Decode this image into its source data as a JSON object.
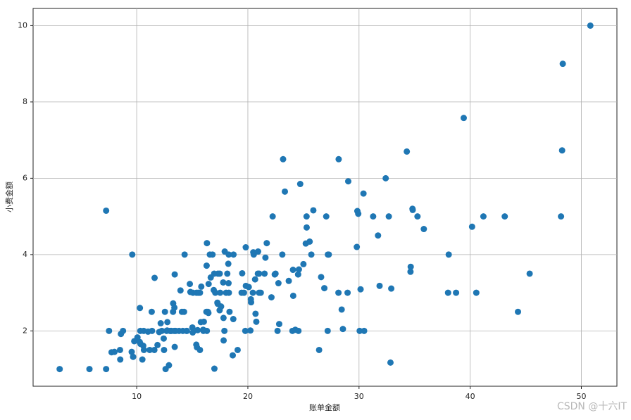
{
  "chart_data": {
    "type": "scatter",
    "xlabel": "账单金额",
    "ylabel": "小费金额",
    "color": "#1f77b4",
    "grid": true,
    "xlim": [
      0.68,
      53.2
    ],
    "ylim": [
      0.55,
      10.45
    ],
    "xticks": [
      10,
      20,
      30,
      40,
      50
    ],
    "yticks": [
      2,
      4,
      6,
      8,
      10
    ],
    "x": [
      3.07,
      5.75,
      7.25,
      7.25,
      7.51,
      7.74,
      8.0,
      8.5,
      8.58,
      8.77,
      8.52,
      9.55,
      9.6,
      9.68,
      9.78,
      10.07,
      10.33,
      10.34,
      10.27,
      10.29,
      10.51,
      10.59,
      10.63,
      10.65,
      11.02,
      11.17,
      11.35,
      11.38,
      11.59,
      11.61,
      11.87,
      12.02,
      12.16,
      12.26,
      12.43,
      12.46,
      12.6,
      12.54,
      12.69,
      12.74,
      12.76,
      12.9,
      13.0,
      13.03,
      13.13,
      13.27,
      13.28,
      13.37,
      13.39,
      13.42,
      13.42,
      13.51,
      13.81,
      13.94,
      14.07,
      14.15,
      14.26,
      14.31,
      14.48,
      14.52,
      14.78,
      14.83,
      15.01,
      15.04,
      15.06,
      15.36,
      15.38,
      15.42,
      15.48,
      15.53,
      15.69,
      15.69,
      15.77,
      15.81,
      15.98,
      16.0,
      16.04,
      16.27,
      16.29,
      16.31,
      16.32,
      16.4,
      16.45,
      16.47,
      16.58,
      16.66,
      16.82,
      16.93,
      16.97,
      16.99,
      17.07,
      17.26,
      17.29,
      17.31,
      17.46,
      17.47,
      17.51,
      17.59,
      17.78,
      17.81,
      17.82,
      17.89,
      17.92,
      18.04,
      18.15,
      18.24,
      18.26,
      18.28,
      18.29,
      18.35,
      18.64,
      18.69,
      18.71,
      19.08,
      19.44,
      19.49,
      19.65,
      19.77,
      19.81,
      19.82,
      20.08,
      20.23,
      20.27,
      20.29,
      20.45,
      20.49,
      20.53,
      20.65,
      20.69,
      20.76,
      20.9,
      20.92,
      21.01,
      21.01,
      21.16,
      21.5,
      21.58,
      21.7,
      22.12,
      22.23,
      22.42,
      22.49,
      22.67,
      22.75,
      22.82,
      23.1,
      23.17,
      23.33,
      23.68,
      24.01,
      24.06,
      24.08,
      24.27,
      24.52,
      24.55,
      24.59,
      24.71,
      25.0,
      25.21,
      25.28,
      25.29,
      25.56,
      25.71,
      25.89,
      26.41,
      26.59,
      26.88,
      27.05,
      27.2,
      27.28,
      27.18,
      28.15,
      28.17,
      28.44,
      28.55,
      28.97,
      29.03,
      29.8,
      29.85,
      29.93,
      30.06,
      30.14,
      30.4,
      30.46,
      31.27,
      31.71,
      31.85,
      32.4,
      32.68,
      32.83,
      32.9,
      34.3,
      34.63,
      34.65,
      34.81,
      34.83,
      35.26,
      35.83,
      38.01,
      38.07,
      38.73,
      39.42,
      40.17,
      40.55,
      41.19,
      43.11,
      44.3,
      45.35,
      48.17,
      48.27,
      48.33,
      50.81
    ],
    "values": [
      1,
      1,
      1,
      5.15,
      2,
      1.44,
      1.45,
      1.5,
      1.92,
      2,
      1.25,
      1.45,
      4,
      1.32,
      1.73,
      1.83,
      2,
      1.66,
      1.71,
      2.6,
      1.25,
      1.61,
      2,
      1.5,
      1.98,
      1.5,
      2.5,
      2,
      1.5,
      3.39,
      1.63,
      1.97,
      2.2,
      2,
      1.8,
      1.5,
      1,
      2.5,
      2,
      2.01,
      2.23,
      1.1,
      2,
      2,
      2,
      2.5,
      2.72,
      2,
      2.61,
      1.58,
      3.48,
      2,
      2,
      3.06,
      2.5,
      2,
      2.5,
      4,
      2,
      2,
      3.23,
      3.02,
      2.09,
      1.96,
      3,
      1.64,
      3,
      1.57,
      2.02,
      3,
      1.5,
      3,
      2.23,
      3.16,
      2.03,
      2,
      2.24,
      2.5,
      3.71,
      2,
      4.3,
      2.5,
      2.47,
      3.23,
      4,
      3.4,
      4,
      3.07,
      3.5,
      1.01,
      3,
      2.74,
      2.71,
      3.5,
      2.54,
      3.5,
      3,
      2.64,
      3.27,
      2.34,
      1.75,
      2,
      4.08,
      3,
      3.5,
      3.76,
      3.25,
      4,
      3,
      2.5,
      1.36,
      2.31,
      4,
      1.5,
      3,
      3.51,
      3,
      2,
      4.19,
      3.18,
      3.15,
      2.01,
      2.83,
      2.75,
      3,
      4.06,
      4,
      3.35,
      2.45,
      2.24,
      3.5,
      4.08,
      3.5,
      3,
      3,
      3.5,
      3.92,
      4.3,
      2.88,
      5,
      3.48,
      3.5,
      2,
      3.25,
      2.18,
      4,
      6.5,
      5.65,
      3.31,
      2,
      3.6,
      2.92,
      2.03,
      3.48,
      2,
      3.61,
      5.85,
      3.75,
      4.29,
      5,
      4.71,
      4.34,
      4,
      5.16,
      1.5,
      3.41,
      3.12,
      5,
      4,
      4,
      2,
      3,
      6.5,
      2.56,
      2.05,
      3,
      5.92,
      4.2,
      5.14,
      5.07,
      2,
      3.09,
      5.6,
      2,
      5,
      4.5,
      3.18,
      6,
      5,
      1.17,
      3.11,
      6.7,
      3.55,
      3.68,
      5.2,
      5.17,
      5,
      4.67,
      3,
      4,
      3,
      7.58,
      4.73,
      3,
      5,
      5,
      2.5,
      3.5,
      5,
      6.73,
      9,
      10
    ]
  },
  "watermark": "CSDN @十六IT"
}
